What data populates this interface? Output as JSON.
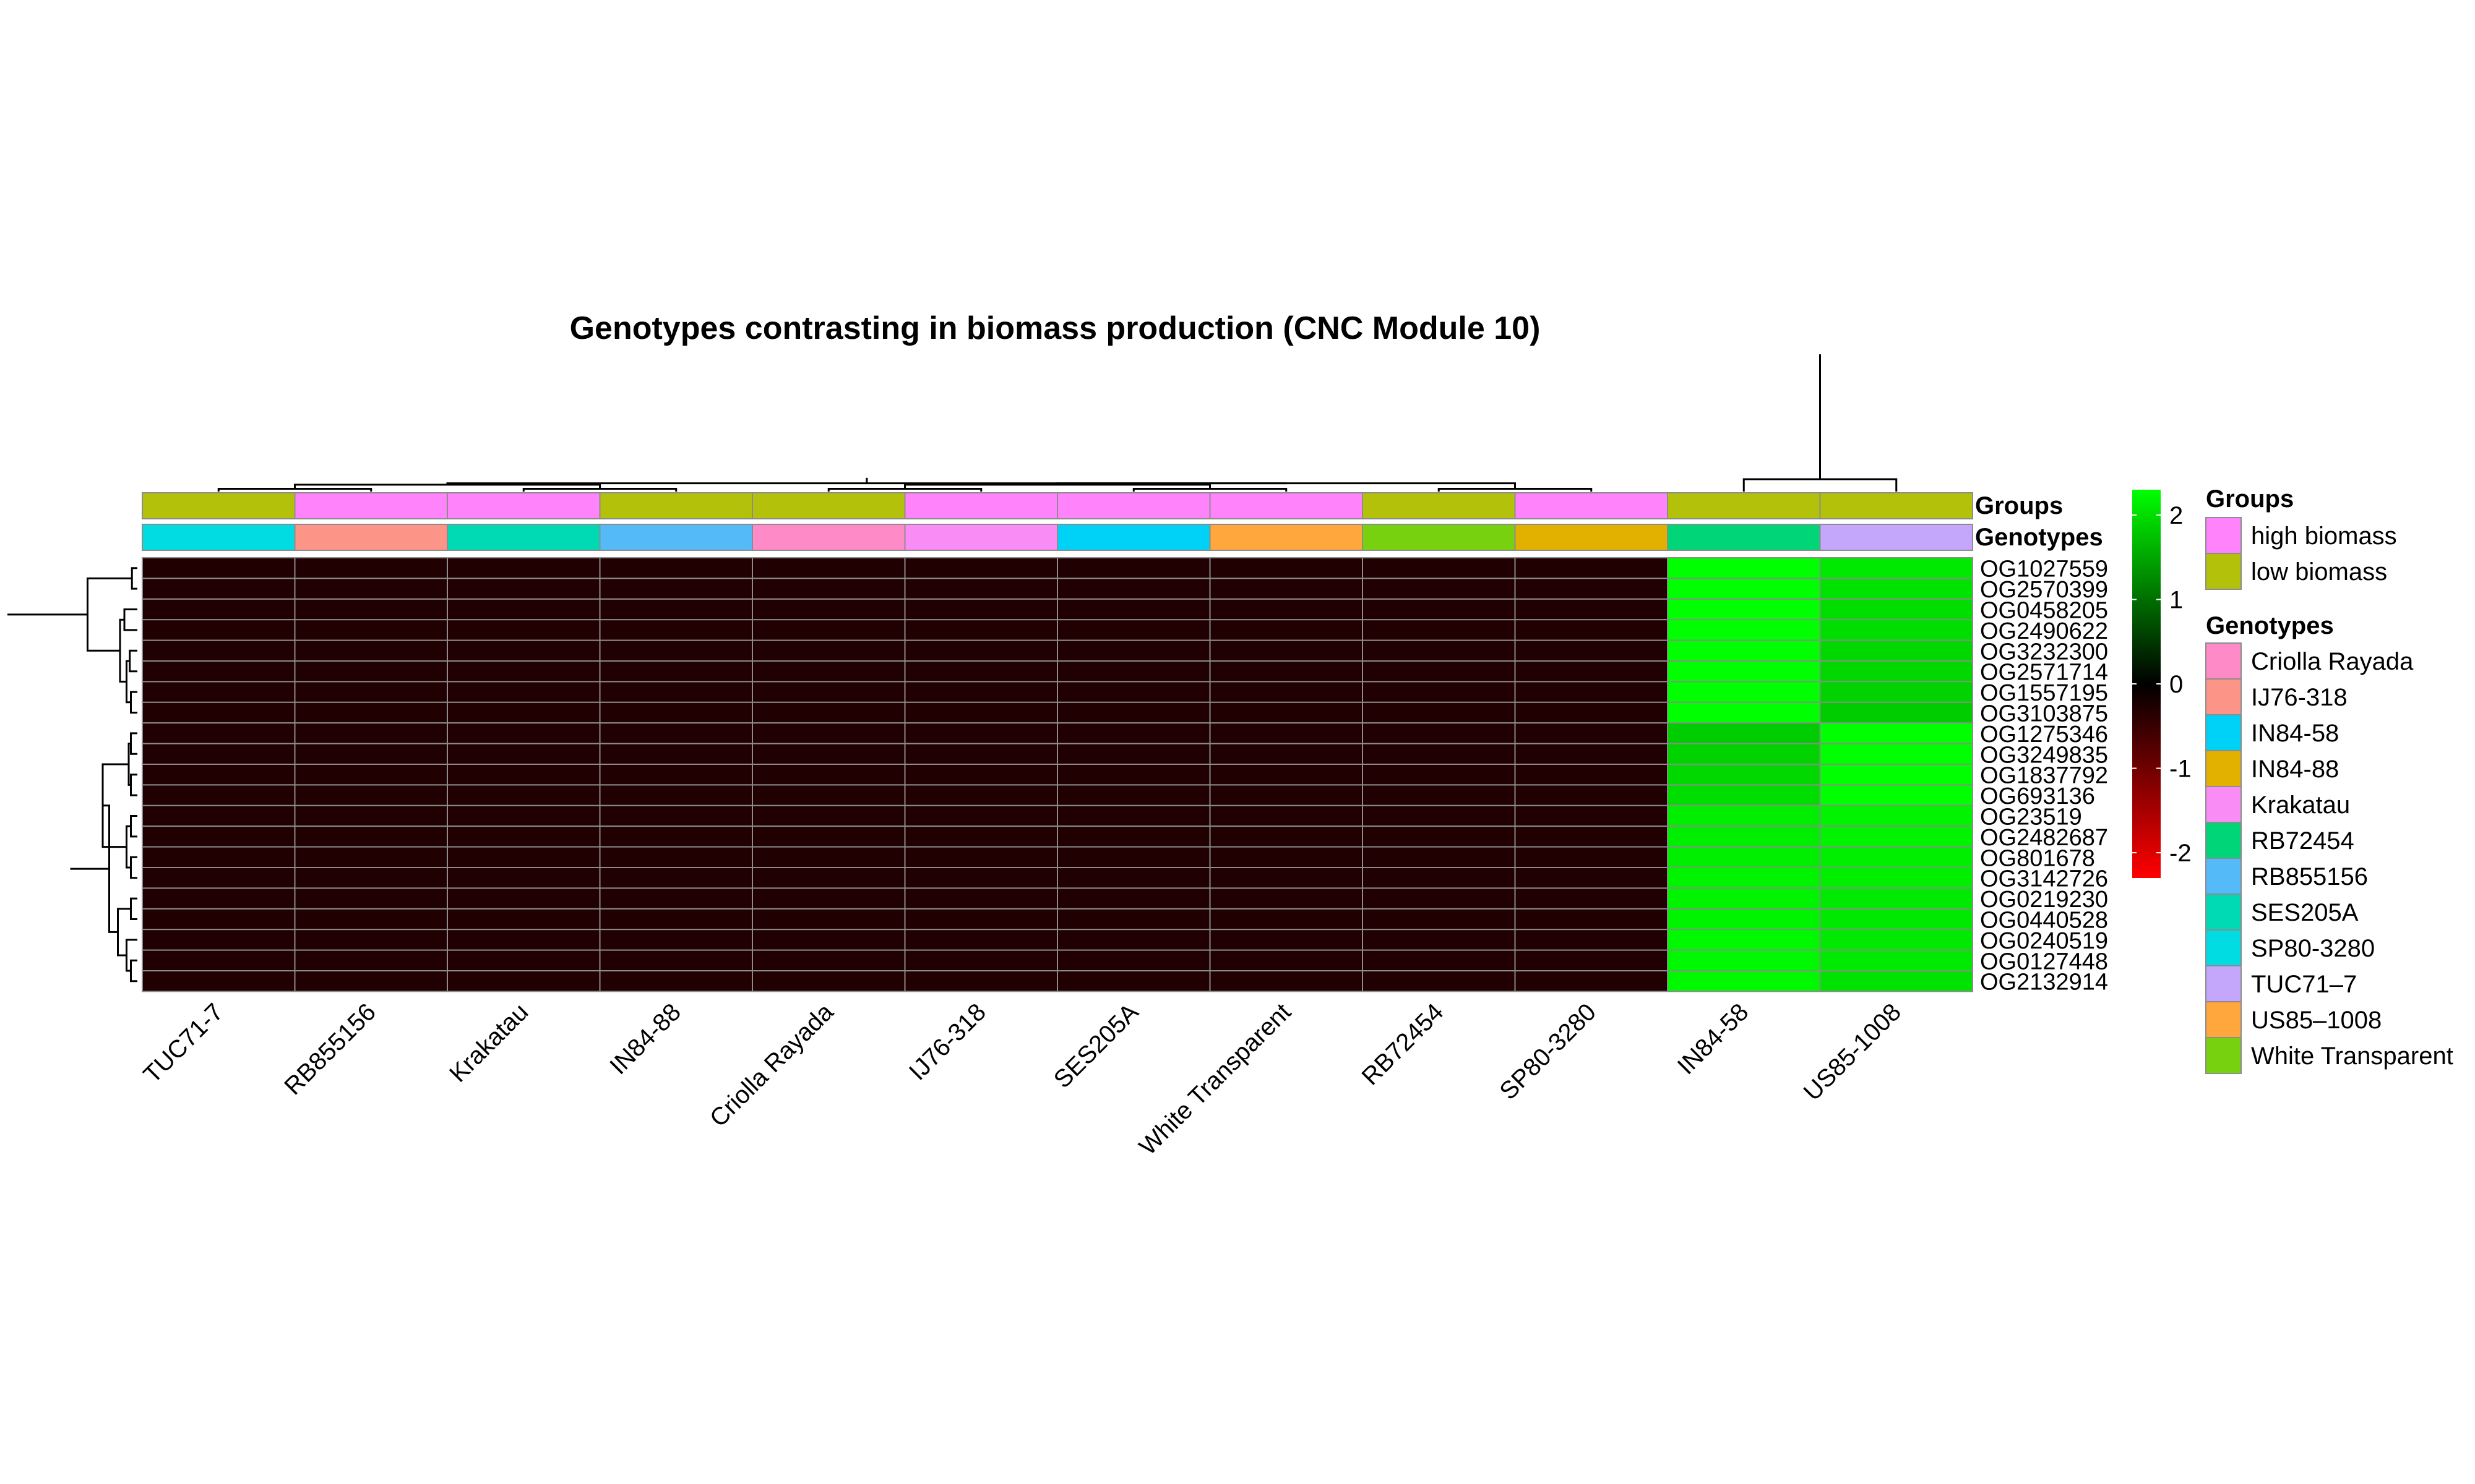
{
  "chart_data": {
    "type": "heatmap",
    "title": "Genotypes contrasting in biomass production (CNC Module 10)",
    "xlabel": "",
    "ylabel": "",
    "columns": [
      "TUC71-7",
      "RB855156",
      "Krakatau",
      "IN84-88",
      "Criolla Rayada",
      "IJ76-318",
      "SES205A",
      "White Transparent",
      "RB72454",
      "SP80-3280",
      "IN84-58",
      "US85-1008"
    ],
    "rows": [
      "OG1027559",
      "OG2570399",
      "OG0458205",
      "OG2490622",
      "OG3232300",
      "OG2571714",
      "OG1557195",
      "OG3103875",
      "OG1275346",
      "OG3249835",
      "OG1837792",
      "OG693136",
      "OG23519",
      "OG2482687",
      "OG801678",
      "OG3142726",
      "OG0219230",
      "OG0440528",
      "OG0240519",
      "OG0127448",
      "OG2132914"
    ],
    "values": [
      [
        -0.29,
        -0.29,
        -0.29,
        -0.29,
        -0.29,
        -0.29,
        -0.29,
        -0.29,
        -0.29,
        -0.29,
        2.3,
        2.1
      ],
      [
        -0.29,
        -0.29,
        -0.29,
        -0.29,
        -0.29,
        -0.29,
        -0.29,
        -0.29,
        -0.29,
        -0.29,
        2.3,
        2.05
      ],
      [
        -0.29,
        -0.29,
        -0.29,
        -0.29,
        -0.29,
        -0.29,
        -0.29,
        -0.29,
        -0.29,
        -0.29,
        2.3,
        2.0
      ],
      [
        -0.29,
        -0.29,
        -0.29,
        -0.29,
        -0.29,
        -0.29,
        -0.29,
        -0.29,
        -0.29,
        -0.29,
        2.3,
        2.0
      ],
      [
        -0.29,
        -0.29,
        -0.29,
        -0.29,
        -0.29,
        -0.29,
        -0.29,
        -0.29,
        -0.29,
        -0.29,
        2.3,
        1.95
      ],
      [
        -0.29,
        -0.29,
        -0.29,
        -0.29,
        -0.29,
        -0.29,
        -0.29,
        -0.29,
        -0.29,
        -0.29,
        2.3,
        1.95
      ],
      [
        -0.29,
        -0.29,
        -0.29,
        -0.29,
        -0.29,
        -0.29,
        -0.29,
        -0.29,
        -0.29,
        -0.29,
        2.3,
        1.9
      ],
      [
        -0.29,
        -0.29,
        -0.29,
        -0.29,
        -0.29,
        -0.29,
        -0.29,
        -0.29,
        -0.29,
        -0.29,
        2.3,
        1.85
      ],
      [
        -0.29,
        -0.29,
        -0.29,
        -0.29,
        -0.29,
        -0.29,
        -0.29,
        -0.29,
        -0.29,
        -0.29,
        1.85,
        2.3
      ],
      [
        -0.29,
        -0.29,
        -0.29,
        -0.29,
        -0.29,
        -0.29,
        -0.29,
        -0.29,
        -0.29,
        -0.29,
        1.9,
        2.3
      ],
      [
        -0.29,
        -0.29,
        -0.29,
        -0.29,
        -0.29,
        -0.29,
        -0.29,
        -0.29,
        -0.29,
        -0.29,
        1.95,
        2.3
      ],
      [
        -0.29,
        -0.29,
        -0.29,
        -0.29,
        -0.29,
        -0.29,
        -0.29,
        -0.29,
        -0.29,
        -0.29,
        2.0,
        2.3
      ],
      [
        -0.29,
        -0.29,
        -0.29,
        -0.29,
        -0.29,
        -0.29,
        -0.29,
        -0.29,
        -0.29,
        -0.29,
        2.15,
        2.2
      ],
      [
        -0.29,
        -0.29,
        -0.29,
        -0.29,
        -0.29,
        -0.29,
        -0.29,
        -0.29,
        -0.29,
        -0.29,
        2.15,
        2.2
      ],
      [
        -0.29,
        -0.29,
        -0.29,
        -0.29,
        -0.29,
        -0.29,
        -0.29,
        -0.29,
        -0.29,
        -0.29,
        2.15,
        2.15
      ],
      [
        -0.29,
        -0.29,
        -0.29,
        -0.29,
        -0.29,
        -0.29,
        -0.29,
        -0.29,
        -0.29,
        -0.29,
        2.2,
        2.15
      ],
      [
        -0.29,
        -0.29,
        -0.29,
        -0.29,
        -0.29,
        -0.29,
        -0.29,
        -0.29,
        -0.29,
        -0.29,
        2.2,
        2.1
      ],
      [
        -0.29,
        -0.29,
        -0.29,
        -0.29,
        -0.29,
        -0.29,
        -0.29,
        -0.29,
        -0.29,
        -0.29,
        2.2,
        2.1
      ],
      [
        -0.29,
        -0.29,
        -0.29,
        -0.29,
        -0.29,
        -0.29,
        -0.29,
        -0.29,
        -0.29,
        -0.29,
        2.25,
        2.1
      ],
      [
        -0.29,
        -0.29,
        -0.29,
        -0.29,
        -0.29,
        -0.29,
        -0.29,
        -0.29,
        -0.29,
        -0.29,
        2.25,
        2.1
      ],
      [
        -0.29,
        -0.29,
        -0.29,
        -0.29,
        -0.29,
        -0.29,
        -0.29,
        -0.29,
        -0.29,
        -0.29,
        2.25,
        2.05
      ]
    ],
    "color_scale": {
      "ticks": [
        2,
        1,
        0,
        -1,
        -2
      ],
      "range": [
        -2.3,
        2.3
      ],
      "colors": {
        "low": "#ff0000",
        "mid": "#000000",
        "high": "#00ff00"
      }
    },
    "annotations": {
      "groups": {
        "label": "Groups",
        "values": [
          "low biomass",
          "high biomass",
          "high biomass",
          "low biomass",
          "low biomass",
          "high biomass",
          "high biomass",
          "high biomass",
          "low biomass",
          "high biomass",
          "low biomass",
          "low biomass"
        ]
      },
      "genotypes": {
        "label": "Genotypes",
        "values": [
          "SP80-3280",
          "IJ76-318",
          "SES205A",
          "RB855156",
          "Criolla Rayada",
          "Krakatau",
          "IN84-58",
          "US85–1008",
          "White Transparent",
          "IN84-88",
          "RB72454",
          "TUC71–7"
        ]
      }
    },
    "legend": {
      "placement": "right",
      "groups": {
        "title": "Groups",
        "entries": [
          {
            "label": "high biomass",
            "color": "#ff83fa"
          },
          {
            "label": "low biomass",
            "color": "#b3c10b"
          }
        ]
      },
      "genotypes": {
        "title": "Genotypes",
        "entries": [
          {
            "label": "Criolla Rayada",
            "color": "#ff8ac8"
          },
          {
            "label": "IJ76-318",
            "color": "#fc9588"
          },
          {
            "label": "IN84-58",
            "color": "#00d2f7"
          },
          {
            "label": "IN84-88",
            "color": "#e2b100"
          },
          {
            "label": "Krakatau",
            "color": "#f98cf5"
          },
          {
            "label": "RB72454",
            "color": "#00d677"
          },
          {
            "label": "RB855156",
            "color": "#54baf8"
          },
          {
            "label": "SES205A",
            "color": "#00dab4"
          },
          {
            "label": "SP80-3280",
            "color": "#00dce1"
          },
          {
            "label": "TUC71–7",
            "color": "#c4a7fa"
          },
          {
            "label": "US85–1008",
            "color": "#ffa63d"
          },
          {
            "label": "White Transparent",
            "color": "#78d10f"
          }
        ]
      }
    },
    "cell_border_color": "#8c8c8c",
    "row_dendrogram": {
      "merges": [
        [
          0,
          1,
          0.25
        ],
        [
          6,
          7,
          0.3
        ],
        [
          4,
          5,
          0.35
        ],
        [
          22,
          23,
          0.5
        ],
        [
          2,
          3,
          0.6
        ],
        [
          25,
          24,
          0.8
        ],
        [
          21,
          26,
          2.3
        ],
        [
          8,
          9,
          0.3
        ],
        [
          10,
          11,
          0.3
        ],
        [
          28,
          29,
          0.4
        ],
        [
          12,
          13,
          0.3
        ],
        [
          14,
          15,
          0.3
        ],
        [
          31,
          32,
          0.5
        ],
        [
          30,
          33,
          1.6
        ],
        [
          16,
          17,
          0.3
        ],
        [
          19,
          20,
          0.3
        ],
        [
          18,
          36,
          0.5
        ],
        [
          35,
          37,
          0.9
        ],
        [
          34,
          38,
          1.3
        ],
        [
          39,
          40,
          3.1
        ],
        [
          27,
          41,
          6.0
        ]
      ]
    },
    "column_dendrogram": {
      "merges": [
        [
          0,
          1,
          0.2
        ],
        [
          2,
          3,
          0.2
        ],
        [
          4,
          5,
          0.2
        ],
        [
          6,
          7,
          0.2
        ],
        [
          8,
          9,
          0.2
        ],
        [
          12,
          13,
          0.5
        ],
        [
          14,
          15,
          0.5
        ],
        [
          16,
          18,
          0.6
        ],
        [
          17,
          19,
          0.6
        ],
        [
          20,
          21,
          1.0
        ],
        [
          10,
          11,
          0.9
        ],
        [
          22,
          23,
          10.0
        ]
      ]
    }
  }
}
